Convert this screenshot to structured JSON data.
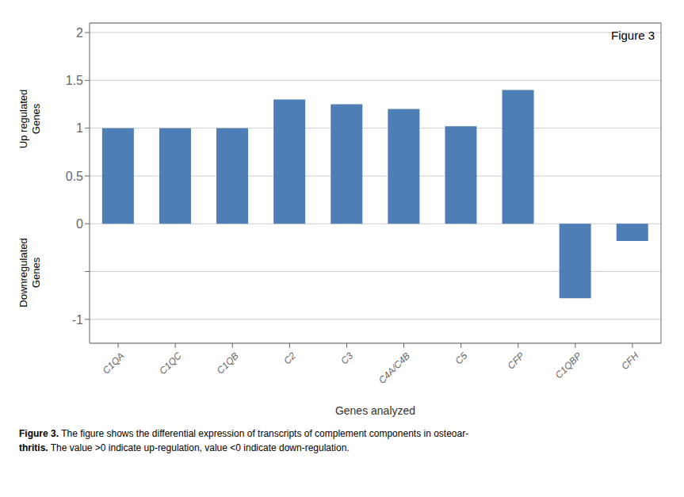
{
  "chart_data": {
    "type": "bar",
    "categories": [
      "C1QA",
      "C1QC",
      "C1QB",
      "C2",
      "C3",
      "C4A/C4B",
      "C5",
      "CFP",
      "C1QBP",
      "CFH"
    ],
    "values": [
      1.0,
      1.0,
      1.0,
      1.3,
      1.25,
      1.2,
      1.02,
      1.4,
      -0.78,
      -0.18
    ],
    "color": "#4d7eb5",
    "xlabel": "Genes analyzed",
    "ylim": [
      -1.25,
      2.1
    ],
    "yticks": [
      -1,
      {
        "value": -0.5,
        "label": ""
      },
      0,
      0.5,
      1,
      1.5,
      2
    ],
    "grid": true,
    "annotations": [
      "Figure 3",
      "Up regulated\nGenes",
      "Downregulated\nGenes"
    ],
    "caption": [
      "Figure 3. The figure shows the differential expression of transcripts of complement components in osteoar-",
      "thritis. The value >0 indicate up-regulation, value <0 indicate down-regulation."
    ]
  }
}
